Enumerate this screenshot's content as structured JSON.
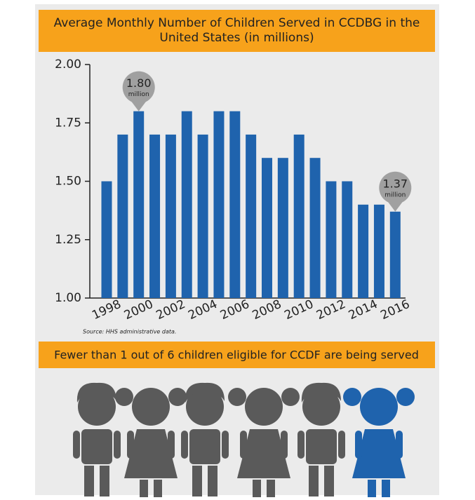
{
  "chart_data": {
    "type": "bar",
    "title": "Average Monthly Number of Children Served in CCDBG in the United States (in millions)",
    "categories": [
      "1998",
      null,
      "2000",
      null,
      "2002",
      null,
      "2004",
      null,
      "2006",
      null,
      "2008",
      null,
      "2010",
      null,
      "2012",
      null,
      "2014",
      null,
      "2016"
    ],
    "values": [
      1.5,
      1.7,
      1.8,
      1.7,
      1.7,
      1.8,
      1.7,
      1.8,
      1.8,
      1.7,
      1.6,
      1.6,
      1.7,
      1.6,
      1.5,
      1.5,
      1.4,
      1.4,
      1.37
    ],
    "value_labels": [
      null,
      null,
      "1.80",
      null,
      null,
      null,
      null,
      null,
      null,
      null,
      null,
      null,
      null,
      null,
      null,
      null,
      null,
      null,
      "1.37"
    ],
    "value_label_unit": "million",
    "color": "#1f63ad",
    "ylim": [
      1,
      2
    ],
    "yticks": [
      {
        "value": 1,
        "label": "1.00"
      },
      {
        "value": 1.25,
        "label": "1.25"
      },
      {
        "value": 1.5,
        "label": "1.50"
      },
      {
        "value": 1.75,
        "label": "1.75"
      },
      {
        "value": 2,
        "label": "2.00"
      }
    ],
    "source": "Source: HHS administrative data.",
    "banner": "Fewer than 1 out of 6 children eligible for CCDF are being served"
  }
}
